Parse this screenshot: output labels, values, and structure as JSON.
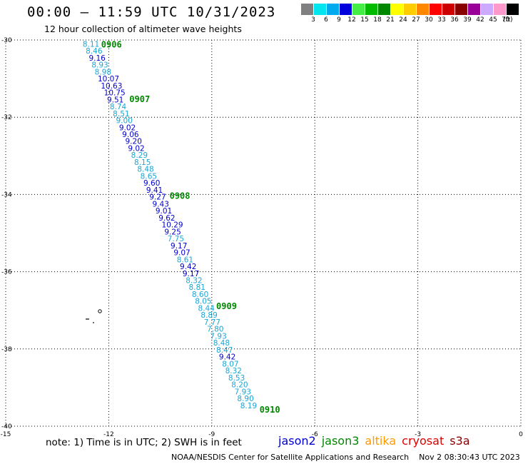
{
  "header": {
    "title": "00:00 – 11:59 UTC 10/31/2023",
    "subtitle": "12 hour collection of altimeter wave heights"
  },
  "legend": {
    "unit": "(ft)",
    "bins": [
      {
        "label": "3",
        "color": "#808080"
      },
      {
        "label": "6",
        "color": "#00e5ee"
      },
      {
        "label": "9",
        "color": "#00aaee"
      },
      {
        "label": "12",
        "color": "#0000dd"
      },
      {
        "label": "15",
        "color": "#44ee44"
      },
      {
        "label": "18",
        "color": "#00bb00"
      },
      {
        "label": "21",
        "color": "#008800"
      },
      {
        "label": "24",
        "color": "#ffff00"
      },
      {
        "label": "27",
        "color": "#ffcc00"
      },
      {
        "label": "30",
        "color": "#ff8800"
      },
      {
        "label": "33",
        "color": "#ff0000"
      },
      {
        "label": "36",
        "color": "#cc0000"
      },
      {
        "label": "39",
        "color": "#880000"
      },
      {
        "label": "42",
        "color": "#990099"
      },
      {
        "label": "45",
        "color": "#ccaaff"
      },
      {
        "label": "70",
        "color": "#ff99cc"
      },
      {
        "label": "",
        "color": "#000000"
      }
    ]
  },
  "axes": {
    "lat_ticks": [
      "-30",
      "-32",
      "-34",
      "-36",
      "-38",
      "-40"
    ],
    "lon_ticks": [
      "-15",
      "-12",
      "-9",
      "-6",
      "-3",
      "0"
    ],
    "lat_range": [
      -40,
      -30
    ],
    "lon_range": [
      -15,
      0
    ]
  },
  "chart_data": {
    "type": "scatter",
    "x_unit": "longitude (deg)",
    "y_unit": "latitude (deg)",
    "colors": {
      "light": "#1aa6d6",
      "dark": "#0000cc",
      "time": "#008800"
    },
    "points": [
      {
        "lat": -30.1,
        "lon": -12.76,
        "v": "8.11",
        "c": "light"
      },
      {
        "lat": -30.28,
        "lon": -12.67,
        "v": "8.46",
        "c": "light"
      },
      {
        "lat": -30.46,
        "lon": -12.58,
        "v": "9.16",
        "c": "dark"
      },
      {
        "lat": -30.64,
        "lon": -12.5,
        "v": "8.93",
        "c": "light"
      },
      {
        "lat": -30.82,
        "lon": -12.41,
        "v": "8.98",
        "c": "light"
      },
      {
        "lat": -31.0,
        "lon": -12.32,
        "v": "10.07",
        "c": "dark"
      },
      {
        "lat": -31.18,
        "lon": -12.23,
        "v": "10.63",
        "c": "dark"
      },
      {
        "lat": -31.36,
        "lon": -12.14,
        "v": "10.75",
        "c": "dark"
      },
      {
        "lat": -31.54,
        "lon": -12.05,
        "v": "9.51",
        "c": "dark"
      },
      {
        "lat": -31.72,
        "lon": -11.97,
        "v": "8.74",
        "c": "light"
      },
      {
        "lat": -31.9,
        "lon": -11.88,
        "v": "8.51",
        "c": "light"
      },
      {
        "lat": -32.08,
        "lon": -11.79,
        "v": "9.00",
        "c": "light"
      },
      {
        "lat": -32.26,
        "lon": -11.7,
        "v": "9.02",
        "c": "dark"
      },
      {
        "lat": -32.44,
        "lon": -11.61,
        "v": "9.06",
        "c": "dark"
      },
      {
        "lat": -32.62,
        "lon": -11.52,
        "v": "9.20",
        "c": "dark"
      },
      {
        "lat": -32.8,
        "lon": -11.44,
        "v": "9.02",
        "c": "dark"
      },
      {
        "lat": -32.98,
        "lon": -11.35,
        "v": "8.29",
        "c": "light"
      },
      {
        "lat": -33.16,
        "lon": -11.26,
        "v": "8.15",
        "c": "light"
      },
      {
        "lat": -33.34,
        "lon": -11.17,
        "v": "8.48",
        "c": "light"
      },
      {
        "lat": -33.52,
        "lon": -11.08,
        "v": "8.65",
        "c": "light"
      },
      {
        "lat": -33.7,
        "lon": -10.99,
        "v": "9.60",
        "c": "dark"
      },
      {
        "lat": -33.88,
        "lon": -10.91,
        "v": "9.41",
        "c": "dark"
      },
      {
        "lat": -34.06,
        "lon": -10.82,
        "v": "9.27",
        "c": "dark"
      },
      {
        "lat": -34.24,
        "lon": -10.73,
        "v": "9.43",
        "c": "dark"
      },
      {
        "lat": -34.42,
        "lon": -10.64,
        "v": "9.01",
        "c": "dark"
      },
      {
        "lat": -34.6,
        "lon": -10.55,
        "v": "9.62",
        "c": "dark"
      },
      {
        "lat": -34.78,
        "lon": -10.46,
        "v": "10.29",
        "c": "dark"
      },
      {
        "lat": -34.96,
        "lon": -10.38,
        "v": "9.25",
        "c": "dark"
      },
      {
        "lat": -35.14,
        "lon": -10.29,
        "v": "7.75",
        "c": "light"
      },
      {
        "lat": -35.32,
        "lon": -10.2,
        "v": "9.17",
        "c": "dark"
      },
      {
        "lat": -35.5,
        "lon": -10.11,
        "v": "9.07",
        "c": "dark"
      },
      {
        "lat": -35.68,
        "lon": -10.02,
        "v": "8.61",
        "c": "light"
      },
      {
        "lat": -35.86,
        "lon": -9.93,
        "v": "9.42",
        "c": "dark"
      },
      {
        "lat": -36.04,
        "lon": -9.85,
        "v": "9.17",
        "c": "dark"
      },
      {
        "lat": -36.22,
        "lon": -9.76,
        "v": "8.32",
        "c": "light"
      },
      {
        "lat": -36.4,
        "lon": -9.67,
        "v": "8.81",
        "c": "light"
      },
      {
        "lat": -36.58,
        "lon": -9.58,
        "v": "8.60",
        "c": "light"
      },
      {
        "lat": -36.76,
        "lon": -9.49,
        "v": "8.05",
        "c": "light"
      },
      {
        "lat": -36.94,
        "lon": -9.4,
        "v": "8.44",
        "c": "light"
      },
      {
        "lat": -37.12,
        "lon": -9.32,
        "v": "8.89",
        "c": "light"
      },
      {
        "lat": -37.3,
        "lon": -9.23,
        "v": "7.77",
        "c": "light"
      },
      {
        "lat": -37.48,
        "lon": -9.14,
        "v": "7.80",
        "c": "light"
      },
      {
        "lat": -37.66,
        "lon": -9.05,
        "v": "7.93",
        "c": "light"
      },
      {
        "lat": -37.84,
        "lon": -8.96,
        "v": "8.48",
        "c": "light"
      },
      {
        "lat": -38.02,
        "lon": -8.87,
        "v": "8.47",
        "c": "light"
      },
      {
        "lat": -38.2,
        "lon": -8.79,
        "v": "9.42",
        "c": "dark"
      },
      {
        "lat": -38.38,
        "lon": -8.7,
        "v": "8.07",
        "c": "light"
      },
      {
        "lat": -38.56,
        "lon": -8.61,
        "v": "8.32",
        "c": "light"
      },
      {
        "lat": -38.74,
        "lon": -8.52,
        "v": "8.53",
        "c": "light"
      },
      {
        "lat": -38.92,
        "lon": -8.43,
        "v": "8.20",
        "c": "light"
      },
      {
        "lat": -39.1,
        "lon": -8.34,
        "v": "7.93",
        "c": "light"
      },
      {
        "lat": -39.28,
        "lon": -8.26,
        "v": "8.90",
        "c": "light"
      },
      {
        "lat": -39.46,
        "lon": -8.17,
        "v": "8.19",
        "c": "light"
      }
    ],
    "times": [
      {
        "lat": -30.1,
        "lon": -12.22,
        "t": "0906"
      },
      {
        "lat": -31.52,
        "lon": -11.4,
        "t": "0907"
      },
      {
        "lat": -34.02,
        "lon": -10.23,
        "t": "0908"
      },
      {
        "lat": -36.88,
        "lon": -8.87,
        "t": "0909"
      },
      {
        "lat": -39.56,
        "lon": -7.61,
        "t": "0910"
      }
    ]
  },
  "footer": {
    "note": "note:  1) Time is in UTC;  2) SWH is in feet",
    "satellites": [
      {
        "name": "jason2",
        "color": "#0000cc"
      },
      {
        "name": "jason3",
        "color": "#008800"
      },
      {
        "name": "altika",
        "color": "#ff9900"
      },
      {
        "name": "cryosat",
        "color": "#dd0000"
      },
      {
        "name": "s3a",
        "color": "#880000"
      }
    ],
    "credit": "NOAA/NESDIS Center for Satellite Applications and Research",
    "timestamp": "Nov  2 08:30:43 UTC 2023"
  }
}
